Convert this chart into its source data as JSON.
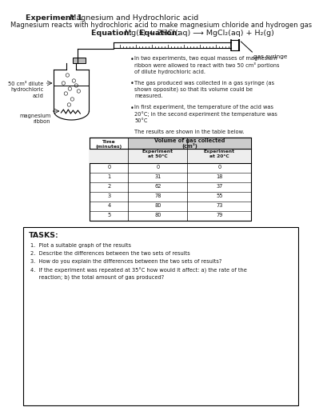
{
  "title_bold": "Experiment 1",
  "title_rest": ": Magnesium and Hydrochloric acid",
  "subtitle": "Magnesium reacts with hydrochloric acid to make magnesium chloride and hydrogen gas",
  "equation": "Equation: Mg(s) + 2HCl(aq) → MgCl₂(aq) + H₂(g)",
  "equation_bold_part": "Equation: ",
  "bullet1_lines": [
    "In two experiments, two equal masses of magnesium",
    "ribbon were allowed to react with two 50 cm³ portions",
    "of dilute hydrochloric acid."
  ],
  "bullet2_lines": [
    "The gas produced was collected in a gas syringe (as",
    "shown opposite) so that its volume could be",
    "measured."
  ],
  "bullet3_lines": [
    "In first experiment, the temperature of the acid was",
    "20°C; in the second experiment the temperature was",
    "50°C"
  ],
  "results_text": "The results are shown in the table below.",
  "label_acid": "50 cm³ dilute\nhydrochloric\nacid",
  "label_ribbon": "magnesium\nribbon",
  "label_syringe": "gas syringe",
  "table_col0": "Time\n(minutes)",
  "table_col1_top": "Volume of gas collected",
  "table_col1_top2": "(cm³)",
  "table_col1": "Experiment\nat 50°C",
  "table_col2": "Experiment\nat 20°C",
  "time": [
    0,
    1,
    2,
    3,
    4,
    5
  ],
  "exp50": [
    0,
    31,
    62,
    78,
    80,
    80
  ],
  "exp20": [
    0,
    18,
    37,
    55,
    73,
    79
  ],
  "tasks_title": "TASKS:",
  "task1": "1.  Plot a suitable graph of the results",
  "task2": "2.  Describe the differences between the two sets of results",
  "task3": "3.  How do you explain the differences between the two sets of results?",
  "task4a": "4.  If the experiment was repeated at 35°C how would it affect: a) the rate of the",
  "task4b": "     reaction; b) the total amount of gas produced?",
  "bg_color": "#ffffff",
  "text_color": "#1a1a1a",
  "gray": "#888888"
}
